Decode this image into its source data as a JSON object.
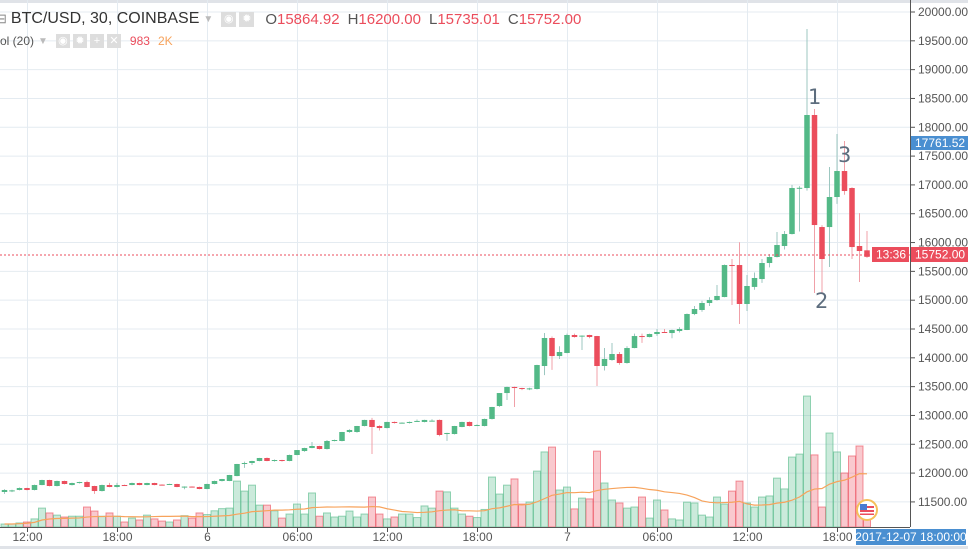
{
  "header": {
    "symbol": "BTC/USD, 30, COINBASE",
    "open_label": "O",
    "open": "15864.92",
    "high_label": "H",
    "high": "16200.00",
    "low_label": "L",
    "low": "15735.01",
    "close_label": "C",
    "close": "15752.00"
  },
  "volume_legend": {
    "name": "ol (20)",
    "volume": "983",
    "ma": "2K"
  },
  "price_badges": {
    "last_price": "15752.00",
    "countdown": "13:36",
    "marker_price": "17761.52"
  },
  "crosshair_time": "2017-12-07 18:00:00",
  "annotations": [
    "1",
    "2",
    "3"
  ],
  "colors": {
    "up": "#53b987",
    "down": "#eb4d5c",
    "ma": "#f7a35c",
    "badge_blue": "#4a8fd1",
    "grid": "#e4ebf1"
  },
  "icons": [
    "collapse-icon",
    "eye-icon",
    "gear-icon",
    "plus-icon",
    "close-icon",
    "us-flag-icon"
  ],
  "chart_data": {
    "type": "candlestick",
    "title": "BTC/USD, 30, COINBASE",
    "ylim": [
      11000,
      20000
    ],
    "grid": true,
    "y_ticks": [
      "20000.00",
      "19500.00",
      "19000.00",
      "18500.00",
      "18000.00",
      "17500.00",
      "17000.00",
      "16500.00",
      "16000.00",
      "15500.00",
      "15000.00",
      "14500.00",
      "14000.00",
      "13500.00",
      "13000.00",
      "12500.00",
      "12000.00",
      "11500.00"
    ],
    "x_ticks": [
      "12:00",
      "18:00",
      "6",
      "06:00",
      "12:00",
      "18:00",
      "7",
      "06:00",
      "12:00",
      "18:00"
    ],
    "volume_ma_period": 20,
    "candles_ohlcv": [
      [
        11672,
        11720,
        11640,
        11707,
        110
      ],
      [
        11690,
        11710,
        11670,
        11700,
        110
      ],
      [
        11707,
        11750,
        11700,
        11741,
        150
      ],
      [
        11741,
        11745,
        11700,
        11707,
        185
      ],
      [
        11707,
        11800,
        11700,
        11793,
        300
      ],
      [
        11793,
        11885,
        11790,
        11880,
        700
      ],
      [
        11880,
        11885,
        11770,
        11776,
        520
      ],
      [
        11776,
        11870,
        11770,
        11863,
        440
      ],
      [
        11863,
        11870,
        11805,
        11811,
        370
      ],
      [
        11793,
        11835,
        11785,
        11828,
        400
      ],
      [
        11828,
        11850,
        11820,
        11845,
        400
      ],
      [
        11845,
        11870,
        11755,
        11759,
        740
      ],
      [
        11776,
        11780,
        11640,
        11689,
        590
      ],
      [
        11689,
        11800,
        11680,
        11793,
        400
      ],
      [
        11793,
        11830,
        11755,
        11759,
        520
      ],
      [
        11759,
        11830,
        11750,
        11793,
        400
      ],
      [
        11793,
        11800,
        11780,
        11785,
        185
      ],
      [
        11793,
        11835,
        11790,
        11828,
        330
      ],
      [
        11828,
        11832,
        11790,
        11793,
        260
      ],
      [
        11793,
        11832,
        11790,
        11828,
        440
      ],
      [
        11828,
        11832,
        11790,
        11793,
        300
      ],
      [
        11800,
        11805,
        11790,
        11793,
        220
      ],
      [
        11800,
        11815,
        11795,
        11811,
        185
      ],
      [
        11811,
        11815,
        11755,
        11759,
        260
      ],
      [
        11759,
        11770,
        11720,
        11766,
        420
      ],
      [
        11766,
        11770,
        11755,
        11759,
        330
      ],
      [
        11759,
        11765,
        11720,
        11724,
        520
      ],
      [
        11724,
        11815,
        11720,
        11811,
        460
      ],
      [
        11811,
        11870,
        11805,
        11863,
        600
      ],
      [
        11863,
        11900,
        11855,
        11897,
        680
      ],
      [
        11863,
        11970,
        11860,
        11967,
        700
      ],
      [
        11949,
        12160,
        11945,
        12158,
        1700
      ],
      [
        12158,
        12200,
        12090,
        12175,
        1330
      ],
      [
        12175,
        12215,
        12140,
        12210,
        1550
      ],
      [
        12210,
        12265,
        12205,
        12262,
        810
      ],
      [
        12262,
        12270,
        12205,
        12210,
        810
      ],
      [
        12220,
        12235,
        12200,
        12227,
        600
      ],
      [
        12227,
        12232,
        12200,
        12210,
        330
      ],
      [
        12210,
        12320,
        12205,
        12314,
        480
      ],
      [
        12314,
        12400,
        12310,
        12400,
        850
      ],
      [
        12383,
        12440,
        12370,
        12435,
        480
      ],
      [
        12435,
        12540,
        12430,
        12470,
        1260
      ],
      [
        12470,
        12475,
        12410,
        12418,
        400
      ],
      [
        12418,
        12575,
        12410,
        12557,
        520
      ],
      [
        12557,
        12580,
        12550,
        12574,
        370
      ],
      [
        12557,
        12715,
        12550,
        12713,
        400
      ],
      [
        12713,
        12760,
        12700,
        12748,
        590
      ],
      [
        12713,
        12820,
        12700,
        12817,
        370
      ],
      [
        12817,
        12925,
        12810,
        12922,
        480
      ],
      [
        12922,
        12957,
        12331,
        12800,
        1110
      ],
      [
        12817,
        12830,
        12740,
        12782,
        480
      ],
      [
        12782,
        12890,
        12775,
        12887,
        300
      ],
      [
        12887,
        12895,
        12860,
        12870,
        370
      ],
      [
        12870,
        12880,
        12860,
        12875,
        480
      ],
      [
        12870,
        12895,
        12860,
        12887,
        480
      ],
      [
        12895,
        12930,
        12890,
        12905,
        350
      ],
      [
        12887,
        12925,
        12880,
        12922,
        780
      ],
      [
        12905,
        12935,
        12900,
        12910,
        700
      ],
      [
        12922,
        12930,
        12640,
        12661,
        1330
      ],
      [
        12678,
        12700,
        12560,
        12696,
        1300
      ],
      [
        12678,
        12820,
        12670,
        12817,
        700
      ],
      [
        12800,
        12890,
        12795,
        12887,
        480
      ],
      [
        12887,
        12895,
        12810,
        12817,
        400
      ],
      [
        12830,
        12845,
        12825,
        12834,
        350
      ],
      [
        12817,
        12945,
        12810,
        12939,
        650
      ],
      [
        12939,
        13150,
        12930,
        13147,
        1850
      ],
      [
        13164,
        13390,
        13150,
        13389,
        1220
      ],
      [
        13389,
        13500,
        13268,
        13494,
        1550
      ],
      [
        13494,
        13500,
        13147,
        13476,
        1780
      ],
      [
        13476,
        13480,
        13440,
        13459,
        850
      ],
      [
        13459,
        13480,
        13440,
        13470,
        925
      ],
      [
        13459,
        13880,
        13450,
        13875,
        2070
      ],
      [
        13858,
        14430,
        13700,
        14344,
        2780
      ],
      [
        14344,
        14370,
        13790,
        14031,
        2960
      ],
      [
        14031,
        14200,
        13980,
        14101,
        1370
      ],
      [
        14084,
        14420,
        14080,
        14396,
        1480
      ],
      [
        14396,
        14420,
        14350,
        14361,
        670
      ],
      [
        14378,
        14390,
        14135,
        14385,
        1070
      ],
      [
        14396,
        14400,
        14340,
        14361,
        1040
      ],
      [
        14378,
        14380,
        13511,
        13858,
        2810
      ],
      [
        13858,
        14170,
        13780,
        13980,
        1630
      ],
      [
        13962,
        14257,
        13950,
        14066,
        1000
      ],
      [
        14066,
        14100,
        13880,
        13910,
        890
      ],
      [
        13910,
        14200,
        13900,
        14170,
        700
      ],
      [
        14170,
        14420,
        14165,
        14378,
        740
      ],
      [
        14378,
        14420,
        14260,
        14361,
        1110
      ],
      [
        14361,
        14420,
        14355,
        14413,
        330
      ],
      [
        14413,
        14500,
        14380,
        14448,
        1000
      ],
      [
        14448,
        14500,
        14430,
        14440,
        630
      ],
      [
        14430,
        14490,
        14340,
        14483,
        300
      ],
      [
        14465,
        14530,
        14440,
        14500,
        260
      ],
      [
        14483,
        14770,
        14480,
        14760,
        920
      ],
      [
        14760,
        14900,
        14740,
        14847,
        890
      ],
      [
        14830,
        14990,
        14800,
        14951,
        440
      ],
      [
        14951,
        15050,
        14900,
        15003,
        370
      ],
      [
        15003,
        15263,
        14990,
        15073,
        1110
      ],
      [
        15055,
        15620,
        15050,
        15610,
        850
      ],
      [
        15610,
        15714,
        14916,
        15600,
        1330
      ],
      [
        15610,
        16005,
        14587,
        14934,
        1700
      ],
      [
        14934,
        15437,
        14812,
        15246,
        890
      ],
      [
        15230,
        15480,
        15180,
        15385,
        740
      ],
      [
        15367,
        15714,
        15300,
        15645,
        1110
      ],
      [
        15645,
        15800,
        15570,
        15749,
        1150
      ],
      [
        15749,
        16183,
        15740,
        15957,
        1810
      ],
      [
        15940,
        16200,
        15880,
        16148,
        1410
      ],
      [
        16148,
        17000,
        16140,
        16946,
        2590
      ],
      [
        16946,
        16980,
        16191,
        16950,
        2700
      ],
      [
        16946,
        19705,
        16900,
        18213,
        4850
      ],
      [
        18213,
        18316,
        15124,
        16304,
        2670
      ],
      [
        16269,
        16300,
        15124,
        15714,
        740
      ],
      [
        16269,
        17311,
        15575,
        16790,
        3480
      ],
      [
        16790,
        17883,
        16670,
        17241,
        2780
      ],
      [
        17241,
        17762,
        16830,
        16894,
        2000
      ],
      [
        16946,
        16960,
        15714,
        15922,
        2630
      ],
      [
        15940,
        16510,
        15315,
        15853,
        3000
      ],
      [
        15864.92,
        16200,
        15735.01,
        15752,
        983
      ]
    ]
  }
}
